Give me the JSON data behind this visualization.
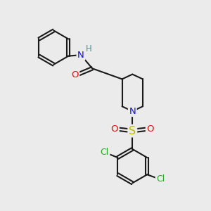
{
  "background_color": "#ebebeb",
  "bond_color": "#1a1a1a",
  "bond_width": 1.5,
  "atom_colors": {
    "N_amide": "#1010dd",
    "N_pip": "#1010dd",
    "H": "#4a9090",
    "O": "#dd1010",
    "S": "#bbbb00",
    "Cl": "#22aa22"
  },
  "font_size_atom": 9.5,
  "font_size_H": 8.5,
  "font_size_Cl": 9.0
}
